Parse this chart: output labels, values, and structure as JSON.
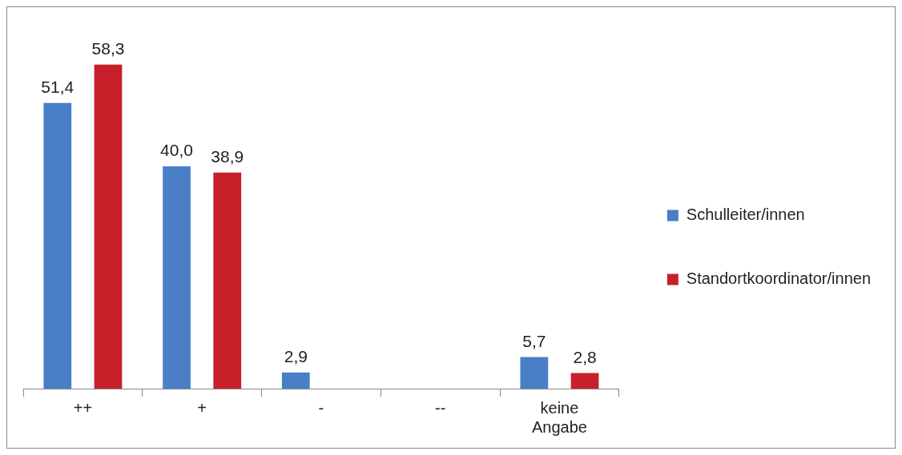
{
  "chart_data": {
    "type": "bar",
    "categories": [
      "++",
      "+",
      "-",
      "--",
      "keine Angabe"
    ],
    "series": [
      {
        "name": "Schulleiter/innen",
        "color": "#4a7fc8",
        "values": [
          51.4,
          40.0,
          2.9,
          null,
          5.7
        ],
        "value_labels": [
          "51,4",
          "40,0",
          "2,9",
          null,
          "5,7"
        ]
      },
      {
        "name": "Standortkoordinator/innen",
        "color": "#c8202a",
        "values": [
          58.3,
          38.9,
          null,
          null,
          2.8
        ],
        "value_labels": [
          "58,3",
          "38,9",
          null,
          null,
          "2,8"
        ]
      }
    ],
    "legend": "right"
  }
}
